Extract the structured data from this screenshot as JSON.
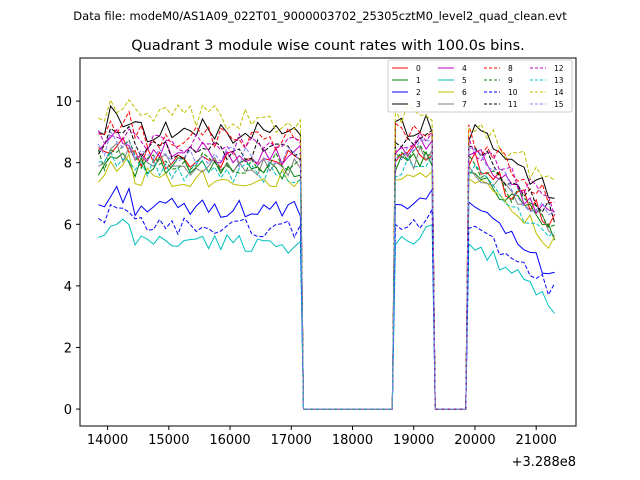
{
  "chart_data": {
    "type": "line",
    "suptitle": "Data file: modeM0/AS1A09_022T01_9000003702_25305cztM0_level2_quad_clean.evt",
    "title": "Quadrant 3 module wise count rates with 100.0s bins.",
    "xlabel": "",
    "ylabel": "",
    "x_offset_label": "+3.288e8",
    "xlim": [
      13550,
      21650
    ],
    "ylim": [
      -0.55,
      11.4
    ],
    "xticks": [
      14000,
      15000,
      16000,
      17000,
      18000,
      19000,
      20000,
      21000
    ],
    "xtick_labels": [
      "14000",
      "15000",
      "16000",
      "17000",
      "18000",
      "19000",
      "20000",
      "21000"
    ],
    "yticks": [
      0,
      2,
      4,
      6,
      8,
      10
    ],
    "ytick_labels": [
      "0",
      "2",
      "4",
      "6",
      "8",
      "10"
    ],
    "legend_position": "top-right",
    "legend_columns": 4,
    "series": [
      {
        "name": "0",
        "color": "#ff0000",
        "dash": "solid",
        "level": 8.2,
        "amp": 0.35,
        "seed": 1
      },
      {
        "name": "1",
        "color": "#008000",
        "dash": "solid",
        "level": 7.9,
        "amp": 0.35,
        "seed": 2
      },
      {
        "name": "2",
        "color": "#0000ff",
        "dash": "solid",
        "level": 6.6,
        "amp": 0.3,
        "seed": 3
      },
      {
        "name": "3",
        "color": "#000000",
        "dash": "solid",
        "level": 9.1,
        "amp": 0.4,
        "seed": 4
      },
      {
        "name": "4",
        "color": "#bf00bf",
        "dash": "solid",
        "level": 8.4,
        "amp": 0.35,
        "seed": 5
      },
      {
        "name": "5",
        "color": "#00bfbf",
        "dash": "solid",
        "level": 5.5,
        "amp": 0.3,
        "seed": 6
      },
      {
        "name": "6",
        "color": "#bfbf00",
        "dash": "solid",
        "level": 7.6,
        "amp": 0.35,
        "seed": 7
      },
      {
        "name": "7",
        "color": "#808080",
        "dash": "solid",
        "level": 8.0,
        "amp": 0.35,
        "seed": 8
      },
      {
        "name": "8",
        "color": "#ff0000",
        "dash": "dashed",
        "level": 8.9,
        "amp": 0.4,
        "seed": 9
      },
      {
        "name": "9",
        "color": "#008000",
        "dash": "dashed",
        "level": 8.1,
        "amp": 0.35,
        "seed": 10
      },
      {
        "name": "10",
        "color": "#0000ff",
        "dash": "dashed",
        "level": 6.0,
        "amp": 0.3,
        "seed": 11
      },
      {
        "name": "11",
        "color": "#000000",
        "dash": "dashed",
        "level": 8.5,
        "amp": 0.35,
        "seed": 12
      },
      {
        "name": "12",
        "color": "#bf00bf",
        "dash": "dashed",
        "level": 8.7,
        "amp": 0.35,
        "seed": 13
      },
      {
        "name": "13",
        "color": "#00bfbf",
        "dash": "dashed",
        "level": 7.8,
        "amp": 0.35,
        "seed": 14
      },
      {
        "name": "14",
        "color": "#bfbf00",
        "dash": "dashed",
        "level": 9.5,
        "amp": 0.45,
        "seed": 15
      },
      {
        "name": "15",
        "color": "#8080ff",
        "dash": "dashed",
        "level": 8.3,
        "amp": 0.35,
        "seed": 16
      }
    ],
    "segments": [
      {
        "x_start": 13850,
        "x_end": 17100,
        "step": 100,
        "trend": -0.15
      },
      {
        "x_start": 18700,
        "x_end": 19300,
        "step": 100,
        "trend": 0.25
      },
      {
        "x_start": 19900,
        "x_end": 21300,
        "step": 100,
        "trend": -2.2
      }
    ],
    "gaps": [
      {
        "x_start": 17200,
        "x_end": 18650,
        "value": 0.0
      },
      {
        "x_start": 19350,
        "x_end": 19850,
        "value": 0.0
      }
    ]
  }
}
